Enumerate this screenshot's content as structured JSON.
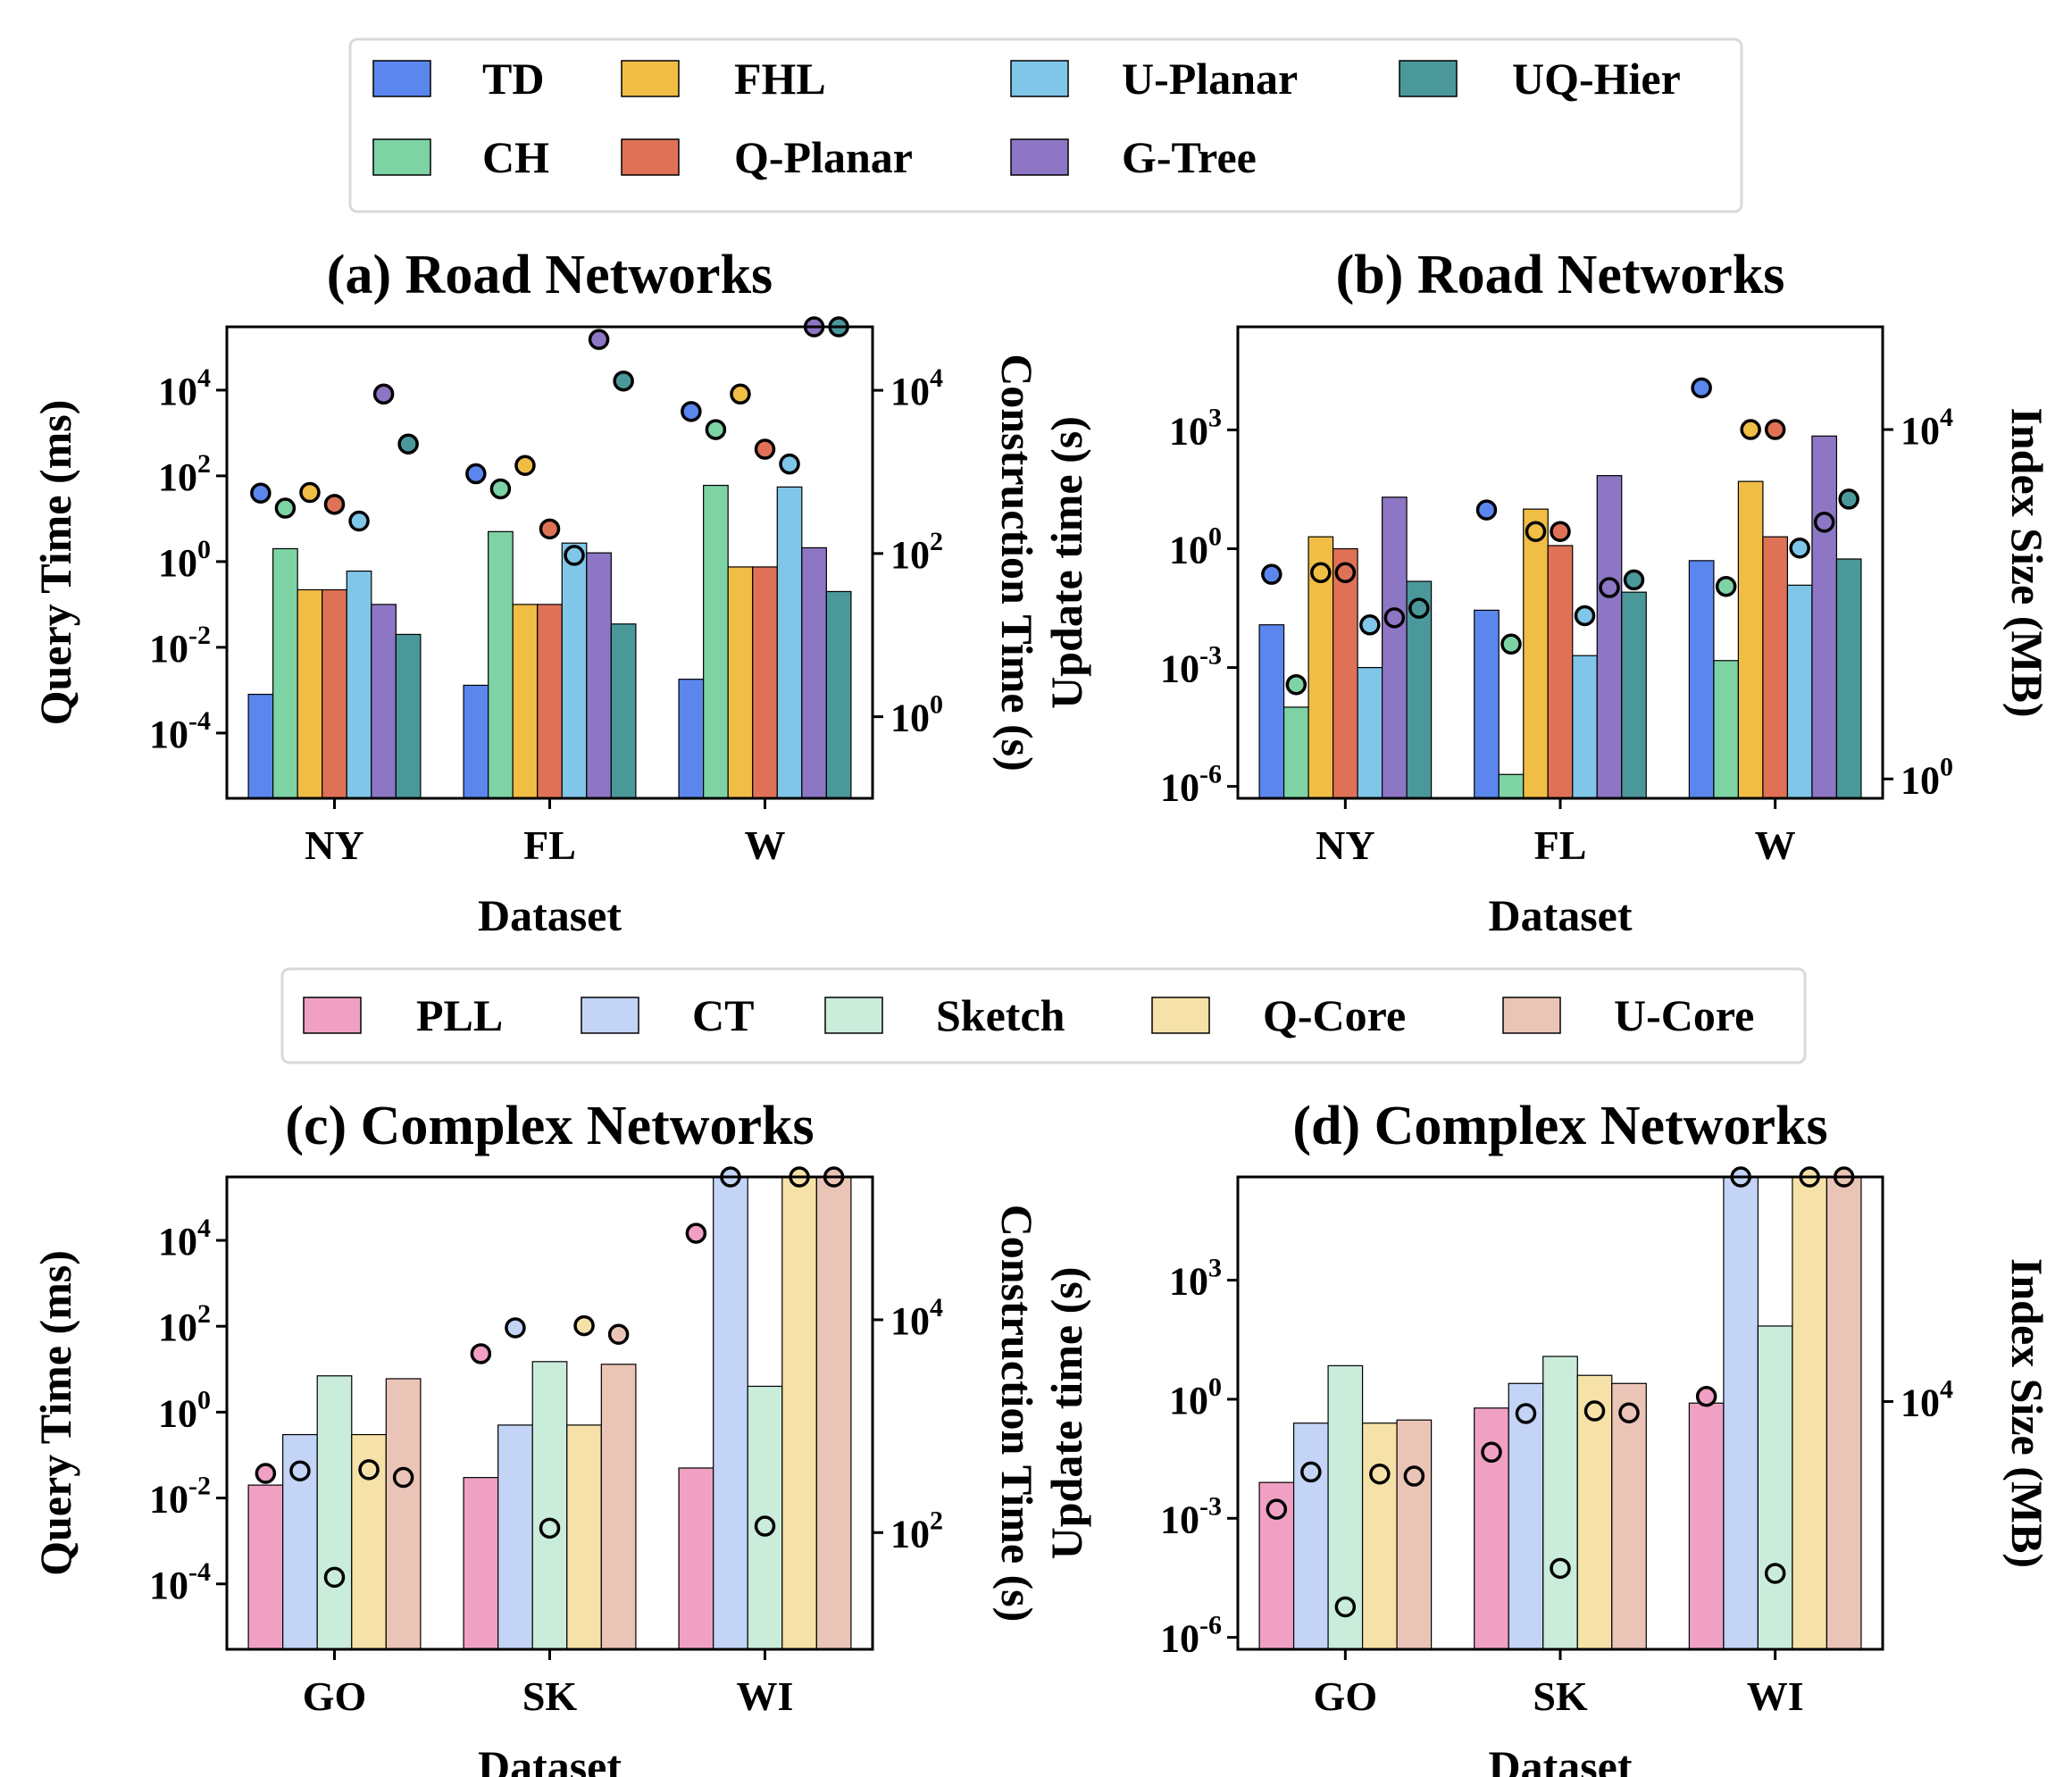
{
  "legends": [
    {
      "name": "road",
      "entries": [
        {
          "label": "TD",
          "color": "#5b86ee"
        },
        {
          "label": "FHL",
          "color": "#f0bd45"
        },
        {
          "label": "U-Planar",
          "color": "#80c6e8"
        },
        {
          "label": "UQ-Hier",
          "color": "#4a989a"
        },
        {
          "label": "CH",
          "color": "#7dd3a4"
        },
        {
          "label": "Q-Planar",
          "color": "#df7256"
        },
        {
          "label": "G-Tree",
          "color": "#8d76c4"
        }
      ]
    },
    {
      "name": "complex",
      "entries": [
        {
          "label": "PLL",
          "color": "#f0a1c3"
        },
        {
          "label": "CT",
          "color": "#c3d4f6"
        },
        {
          "label": "Sketch",
          "color": "#c9ecdb"
        },
        {
          "label": "Q-Core",
          "color": "#f6e2a8"
        },
        {
          "label": "U-Core",
          "color": "#ebc4b8"
        }
      ]
    }
  ],
  "chart_data": [
    {
      "id": "a",
      "type": "bar",
      "title": "(a) Road Networks",
      "xlabel": "Dataset",
      "ylabel": "Query Time (ms)",
      "y2label": "Construction Time (s)",
      "yscale": "log",
      "ylim": [
        3e-06,
        300000.0
      ],
      "yticks": [
        -4,
        -2,
        0,
        2,
        4
      ],
      "y2lim": [
        0.1,
        60000
      ],
      "y2ticks": [
        0,
        2,
        4
      ],
      "categories": [
        "NY",
        "FL",
        "W"
      ],
      "series": [
        {
          "name": "TD",
          "color": "#5b86ee",
          "values": [
            0.0008,
            0.0013,
            0.0018
          ],
          "markers": [
            550,
            950,
            5500
          ]
        },
        {
          "name": "CH",
          "color": "#7dd3a4",
          "values": [
            2.0,
            5.0,
            60.0
          ],
          "markers": [
            360,
            620,
            3300
          ]
        },
        {
          "name": "FHL",
          "color": "#f0bd45",
          "values": [
            0.22,
            0.1,
            0.75
          ],
          "markers": [
            560,
            1200,
            9000
          ]
        },
        {
          "name": "Q-Planar",
          "color": "#df7256",
          "values": [
            0.22,
            0.1,
            0.75
          ],
          "markers": [
            400,
            200,
            1900
          ]
        },
        {
          "name": "U-Planar",
          "color": "#80c6e8",
          "values": [
            0.6,
            2.7,
            55.0
          ],
          "markers": [
            250,
            95,
            1250
          ]
        },
        {
          "name": "G-Tree",
          "color": "#8d76c4",
          "values": [
            0.1,
            1.6,
            2.1
          ],
          "markers": [
            9000,
            42000,
            420000
          ]
        },
        {
          "name": "UQ-Hier",
          "color": "#4a989a",
          "values": [
            0.02,
            0.035,
            0.2
          ],
          "markers": [
            2200,
            13000,
            360000
          ]
        }
      ]
    },
    {
      "id": "b",
      "type": "bar",
      "title": "(b) Road Networks",
      "xlabel": "Dataset",
      "ylabel": "Update time (s)",
      "y2label": "Index Size (MB)",
      "yscale": "log",
      "ylim": [
        5e-07,
        400000.0
      ],
      "yticks": [
        -6,
        -3,
        0,
        3
      ],
      "y2lim": [
        0.6,
        150000
      ],
      "y2ticks": [
        0,
        4
      ],
      "categories": [
        "NY",
        "FL",
        "W"
      ],
      "series": [
        {
          "name": "TD",
          "color": "#5b86ee",
          "values": [
            0.012,
            0.028,
            0.5
          ],
          "markers": [
            220,
            1200,
            30000
          ]
        },
        {
          "name": "CH",
          "color": "#7dd3a4",
          "values": [
            0.0001,
            2e-06,
            0.0015
          ],
          "markers": [
            12,
            35,
            160
          ]
        },
        {
          "name": "FHL",
          "color": "#f0bd45",
          "values": [
            2.0,
            10.0,
            50.0
          ],
          "markers": [
            230,
            680,
            10000
          ]
        },
        {
          "name": "Q-Planar",
          "color": "#df7256",
          "values": [
            1.0,
            1.2,
            2.0
          ],
          "markers": [
            230,
            680,
            10000
          ]
        },
        {
          "name": "U-Planar",
          "color": "#80c6e8",
          "values": [
            0.001,
            0.002,
            0.12
          ],
          "markers": [
            58,
            74,
            440
          ]
        },
        {
          "name": "G-Tree",
          "color": "#8d76c4",
          "values": [
            20.0,
            70.0,
            700.0
          ],
          "markers": [
            70,
            155,
            870
          ]
        },
        {
          "name": "UQ-Hier",
          "color": "#4a989a",
          "values": [
            0.15,
            0.08,
            0.55
          ],
          "markers": [
            90,
            190,
            1600
          ]
        }
      ]
    },
    {
      "id": "c",
      "type": "bar",
      "title": "(c) Complex Networks",
      "xlabel": "Dataset",
      "ylabel": "Query Time (ms)",
      "y2label": "Construction Time (s)",
      "yscale": "log",
      "ylim": [
        3e-06,
        300000.0
      ],
      "yticks": [
        -4,
        -2,
        0,
        2,
        4
      ],
      "y2lim": [
        8,
        220000
      ],
      "y2ticks": [
        2,
        4
      ],
      "categories": [
        "GO",
        "SK",
        "WI"
      ],
      "series": [
        {
          "name": "PLL",
          "color": "#f0a1c3",
          "values": [
            0.02,
            0.03,
            0.05
          ],
          "markers": [
            360,
            4800,
            65000
          ]
        },
        {
          "name": "CT",
          "color": "#c3d4f6",
          "values": [
            0.3,
            0.5,
            300000
          ],
          "markers": [
            380,
            8400,
            220000
          ]
        },
        {
          "name": "Sketch",
          "color": "#c9ecdb",
          "values": [
            7.0,
            15.0,
            4.0
          ],
          "markers": [
            38,
            110,
            115
          ]
        },
        {
          "name": "Q-Core",
          "color": "#f6e2a8",
          "values": [
            0.3,
            0.5,
            300000
          ],
          "markers": [
            390,
            8800,
            220000
          ]
        },
        {
          "name": "U-Core",
          "color": "#ebc4b8",
          "values": [
            6.0,
            13.0,
            300000
          ],
          "markers": [
            330,
            7300,
            220000
          ]
        }
      ]
    },
    {
      "id": "d",
      "type": "bar",
      "title": "(d) Complex Networks",
      "xlabel": "Dataset",
      "ylabel": "Update time (s)",
      "y2label": "Index Size (MB)",
      "yscale": "log",
      "ylim": [
        5e-07,
        400000.0
      ],
      "yticks": [
        -6,
        -3,
        0,
        3
      ],
      "y2lim": [
        100,
        650000
      ],
      "y2ticks": [
        4
      ],
      "categories": [
        "GO",
        "SK",
        "WI"
      ],
      "series": [
        {
          "name": "PLL",
          "color": "#f0a1c3",
          "values": [
            0.008,
            0.6,
            0.8
          ],
          "markers": [
            1350,
            3900,
            11000
          ]
        },
        {
          "name": "CT",
          "color": "#c3d4f6",
          "values": [
            0.25,
            2.5,
            400000
          ],
          "markers": [
            2700,
            8000,
            650000
          ]
        },
        {
          "name": "Sketch",
          "color": "#c9ecdb",
          "values": [
            7.0,
            12.0,
            70.0
          ],
          "markers": [
            220,
            450,
            410
          ]
        },
        {
          "name": "Q-Core",
          "color": "#f6e2a8",
          "values": [
            0.25,
            4.0,
            400000
          ],
          "markers": [
            2600,
            8400,
            650000
          ]
        },
        {
          "name": "U-Core",
          "color": "#ebc4b8",
          "values": [
            0.3,
            2.5,
            400000
          ],
          "markers": [
            2500,
            8100,
            650000
          ]
        }
      ]
    }
  ]
}
